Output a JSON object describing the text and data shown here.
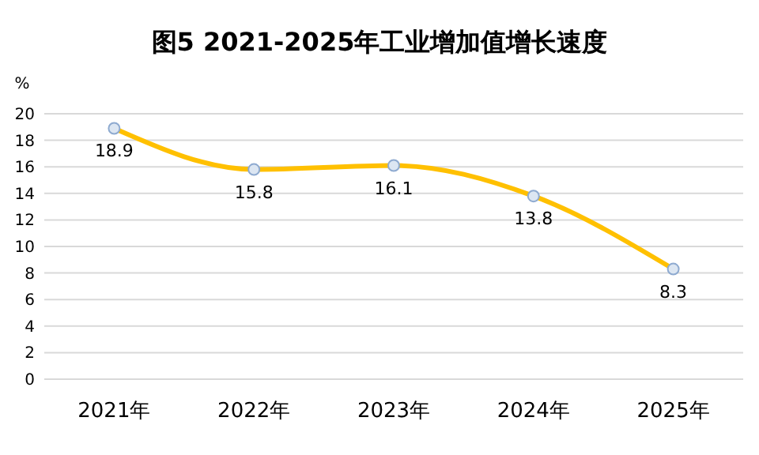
{
  "chart_data": {
    "type": "line",
    "title": "图5  2021-2025年工业增加值增长速度",
    "ylabel": "%",
    "categories": [
      "2021年",
      "2022年",
      "2023年",
      "2024年",
      "2025年"
    ],
    "series": [
      {
        "color": "#ffc000",
        "values": [
          18.9,
          15.8,
          16.1,
          13.8,
          8.3
        ]
      }
    ],
    "ylim": [
      0,
      20
    ],
    "yticks": [
      0,
      2,
      4,
      6,
      8,
      10,
      12,
      14,
      16,
      18,
      20
    ],
    "grid": "y",
    "marker": "circle",
    "line_style": "solid",
    "data_labels": true
  }
}
